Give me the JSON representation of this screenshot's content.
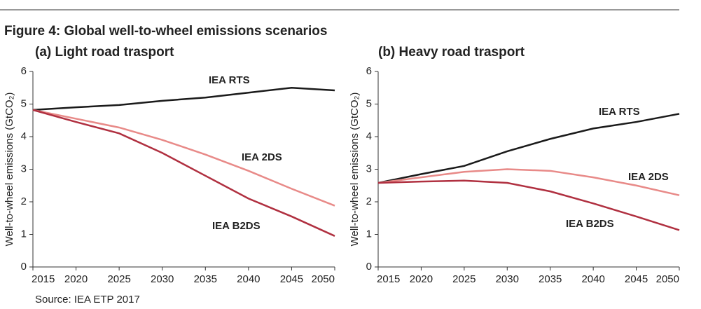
{
  "title": "Figure 4: Global well-to-wheel emissions scenarios",
  "source": "Source: IEA ETP 2017",
  "chart_data": [
    {
      "type": "line",
      "subtitle": "(a) Light road trasport",
      "y_label": "Well-to-wheel emissions (GtCO₂)",
      "x": [
        2015,
        2020,
        2025,
        2030,
        2035,
        2040,
        2045,
        2050
      ],
      "xlim": [
        2015,
        2050
      ],
      "xticks": [
        2015,
        2020,
        2025,
        2030,
        2035,
        2040,
        2045,
        2050
      ],
      "ylim": [
        0,
        6
      ],
      "yticks": [
        0,
        1,
        2,
        3,
        4,
        5,
        6
      ],
      "series": [
        {
          "name": "IEA RTS",
          "color": "#1a1a1a",
          "values": [
            4.82,
            4.9,
            4.97,
            5.1,
            5.2,
            5.35,
            5.5,
            5.42
          ]
        },
        {
          "name": "IEA 2DS",
          "color": "#e88a88",
          "values": [
            4.82,
            4.55,
            4.28,
            3.9,
            3.45,
            2.95,
            2.4,
            1.88
          ]
        },
        {
          "name": "IEA B2DS",
          "color": "#b03040",
          "values": [
            4.82,
            4.45,
            4.1,
            3.5,
            2.8,
            2.1,
            1.55,
            0.95
          ]
        }
      ]
    },
    {
      "type": "line",
      "subtitle": "(b) Heavy road trasport",
      "y_label": "Well-to-wheel emissions (GtCO₂)",
      "x": [
        2015,
        2020,
        2025,
        2030,
        2035,
        2040,
        2045,
        2050
      ],
      "xlim": [
        2015,
        2050
      ],
      "xticks": [
        2015,
        2020,
        2025,
        2030,
        2035,
        2040,
        2045,
        2050
      ],
      "ylim": [
        0,
        6
      ],
      "yticks": [
        0,
        1,
        2,
        3,
        4,
        5,
        6
      ],
      "series": [
        {
          "name": "IEA RTS",
          "color": "#1a1a1a",
          "values": [
            2.58,
            2.85,
            3.1,
            3.55,
            3.93,
            4.25,
            4.45,
            4.7
          ]
        },
        {
          "name": "IEA 2DS",
          "color": "#e88a88",
          "values": [
            2.58,
            2.75,
            2.92,
            3.0,
            2.95,
            2.75,
            2.5,
            2.2
          ]
        },
        {
          "name": "IEA B2DS",
          "color": "#b03040",
          "values": [
            2.58,
            2.62,
            2.65,
            2.58,
            2.32,
            1.95,
            1.55,
            1.13
          ]
        }
      ]
    }
  ]
}
